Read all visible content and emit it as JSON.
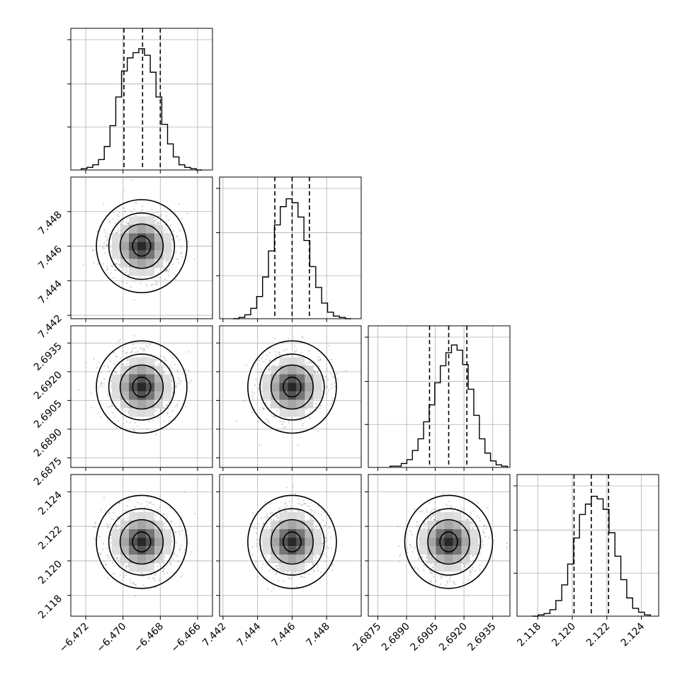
{
  "chart_data": {
    "type": "corner",
    "grid": true,
    "parameters": [
      {
        "range": [
          -6.4728,
          -6.4652
        ],
        "ticks": [
          -6.472,
          -6.47,
          -6.468,
          -6.466
        ],
        "tick_labels": [
          "−6.472",
          "−6.470",
          "−6.468",
          "−6.466"
        ],
        "mean": -6.469,
        "sigma": 0.0009,
        "quantiles": [
          -6.46995,
          -6.46895,
          -6.468
        ]
      },
      {
        "range": [
          7.4418,
          7.45
        ],
        "ticks": [
          7.442,
          7.444,
          7.446,
          7.448
        ],
        "tick_labels": [
          "7.442",
          "7.444",
          "7.446",
          "7.448"
        ],
        "mean": 7.446,
        "sigma": 0.00095,
        "quantiles": [
          7.445,
          7.446,
          7.447
        ]
      },
      {
        "range": [
          2.687,
          2.6944
        ],
        "ticks": [
          2.6875,
          2.689,
          2.6905,
          2.692,
          2.6935
        ],
        "tick_labels": [
          "2.6875",
          "2.6890",
          "2.6905",
          "2.6920",
          "2.6935"
        ],
        "mean": 2.6912,
        "sigma": 0.00085,
        "quantiles": [
          2.6902,
          2.6912,
          2.69215
        ]
      },
      {
        "range": [
          2.1168,
          2.125
        ],
        "ticks": [
          2.118,
          2.12,
          2.122,
          2.124
        ],
        "tick_labels": [
          "2.118",
          "2.120",
          "2.122",
          "2.124"
        ],
        "mean": 2.1211,
        "sigma": 0.00095,
        "quantiles": [
          2.1201,
          2.1211,
          2.1221
        ]
      }
    ],
    "histograms": [
      {
        "param": 0,
        "counts": [
          1,
          2,
          4,
          8,
          18,
          34,
          56,
          76,
          86,
          90,
          93,
          88,
          75,
          56,
          35,
          20,
          10,
          4,
          2,
          1,
          0
        ],
        "ymax": 100
      },
      {
        "param": 1,
        "counts": [
          0,
          1,
          3,
          8,
          17,
          32,
          52,
          72,
          86,
          92,
          89,
          78,
          60,
          40,
          24,
          12,
          5,
          2,
          1,
          0
        ],
        "ymax": 100
      },
      {
        "param": 2,
        "counts": [
          1,
          1,
          3,
          6,
          13,
          22,
          35,
          48,
          65,
          78,
          88,
          94,
          90,
          79,
          60,
          40,
          22,
          11,
          5,
          2,
          1
        ],
        "ymax": 100
      },
      {
        "param": 3,
        "counts": [
          0,
          1,
          2,
          5,
          12,
          24,
          40,
          60,
          78,
          86,
          92,
          90,
          82,
          64,
          46,
          28,
          14,
          6,
          3,
          1
        ],
        "ymax": 100
      }
    ]
  }
}
